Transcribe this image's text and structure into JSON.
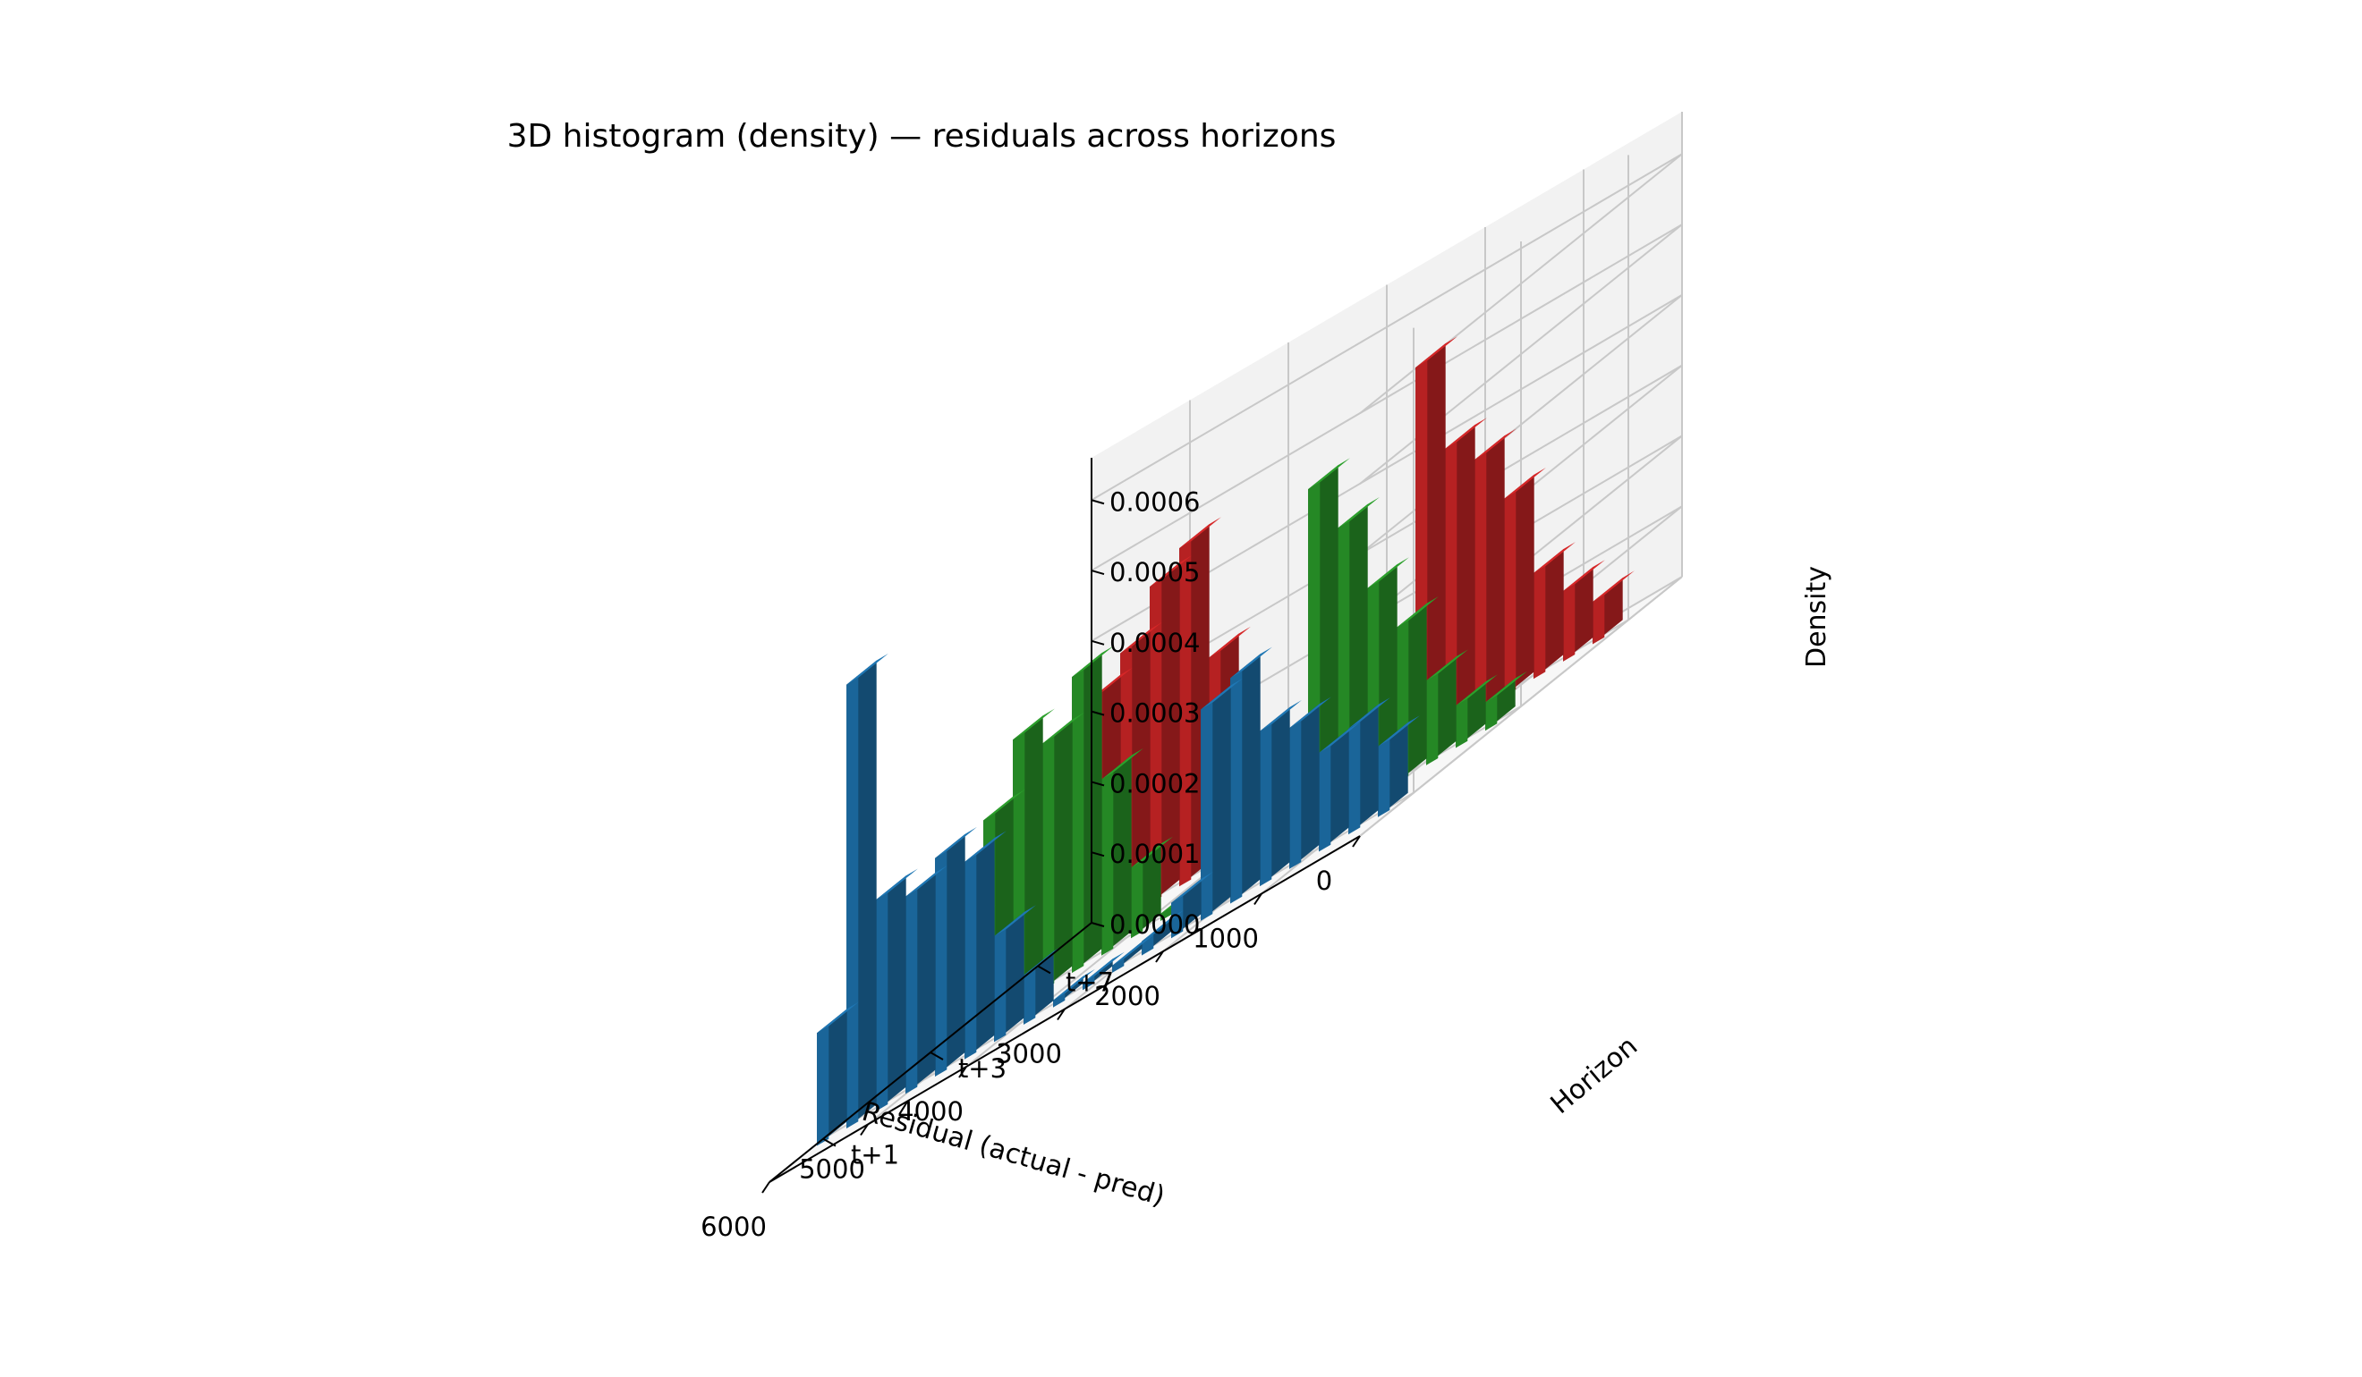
{
  "chart_data": {
    "type": "bar3d",
    "title": "3D histogram (density) — residuals across horizons",
    "xlabel": "Residual (actual - pred)",
    "ylabel": "Horizon",
    "zlabel": "Density",
    "xlim": [
      0,
      6000
    ],
    "zlim": [
      0,
      0.0006
    ],
    "x_ticks": [
      "0",
      "1000",
      "2000",
      "3000",
      "4000",
      "5000",
      "6000"
    ],
    "y_ticks": [
      "t+1",
      "t+3",
      "t+7"
    ],
    "z_ticks": [
      "0.0000",
      "0.0001",
      "0.0002",
      "0.0003",
      "0.0004",
      "0.0005",
      "0.0006"
    ],
    "bin_centers": [
      150,
      450,
      750,
      1050,
      1350,
      1650,
      1950,
      2250,
      2550,
      2850,
      3150,
      3450,
      3750,
      4050,
      4350,
      4650,
      4950,
      5250,
      5550,
      5850
    ],
    "grid": true,
    "series": [
      {
        "name": "t+1",
        "color": "#1f77b4",
        "values": [
          0.0001,
          0.00015,
          0.00014,
          0.0002,
          0.00022,
          0.00032,
          0.0003,
          5e-05,
          2e-05,
          1e-05,
          1e-05,
          1e-05,
          7e-05,
          0.00015,
          0.00028,
          0.00031,
          0.00028,
          0.0003,
          0.00063,
          0.00016
        ]
      },
      {
        "name": "t+3",
        "color": "#2ca02c",
        "values": [
          4e-05,
          6e-05,
          0.00012,
          0.00022,
          0.0003,
          0.00041,
          0.00049,
          2e-05,
          1e-05,
          1e-05,
          1e-05,
          1e-05,
          0.0001,
          0.00025,
          0.00042,
          0.00035,
          0.00038,
          0.00029,
          0.00015,
          3e-05
        ]
      },
      {
        "name": "t+7",
        "color": "#d62728",
        "values": [
          6e-05,
          0.0001,
          0.00015,
          0.00028,
          0.00036,
          0.0004,
          0.00054,
          0.0001,
          4e-05,
          2e-05,
          2e-05,
          5e-05,
          0.00012,
          0.0003,
          0.00048,
          0.00045,
          0.00038,
          0.00034,
          0.00022,
          0.0001
        ]
      }
    ]
  }
}
